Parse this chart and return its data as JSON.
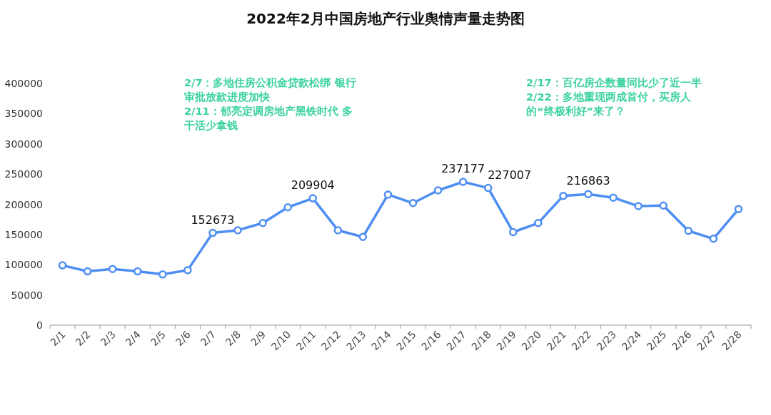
{
  "chart_data": {
    "type": "line",
    "title": "2022年2月中国房地产行业舆情声量走势图",
    "categories": [
      "2/1",
      "2/2",
      "2/3",
      "2/4",
      "2/5",
      "2/6",
      "2/7",
      "2/8",
      "2/9",
      "2/10",
      "2/11",
      "2/12",
      "2/13",
      "2/14",
      "2/15",
      "2/16",
      "2/17",
      "2/18",
      "2/19",
      "2/20",
      "2/21",
      "2/22",
      "2/23",
      "2/24",
      "2/25",
      "2/26",
      "2/27",
      "2/28"
    ],
    "series": [
      {
        "color": "#4e8ef2",
        "values": [
          99000,
          89000,
          93000,
          89000,
          84000,
          91000,
          152673,
          157000,
          169000,
          195000,
          209904,
          157000,
          146000,
          216000,
          202000,
          223000,
          237177,
          227007,
          154000,
          169000,
          214000,
          216863,
          211000,
          197000,
          198000,
          156000,
          143000,
          192000
        ],
        "value_labels": [
          null,
          null,
          null,
          null,
          null,
          null,
          "152673",
          null,
          null,
          null,
          "209904",
          null,
          null,
          null,
          null,
          null,
          "237177",
          "227007",
          null,
          null,
          null,
          "216863",
          null,
          null,
          null,
          null,
          null,
          null
        ]
      }
    ],
    "ylim": [
      0,
      400000
    ],
    "yticks": [
      0,
      50000,
      100000,
      150000,
      200000,
      250000,
      300000,
      350000,
      400000
    ],
    "marker": "circle",
    "line_style": "solid",
    "grid": false,
    "annotations": [
      "2/7：多地住房公积金贷款松绑 银行审批放款进度加快",
      "2/11：郁亮定调房地产黑铁时代 多干活少拿钱",
      "2/17：百亿房企数量同比少了近一半",
      "2/22：多地重现两成首付，买房人的“终极利好”来了？"
    ]
  }
}
